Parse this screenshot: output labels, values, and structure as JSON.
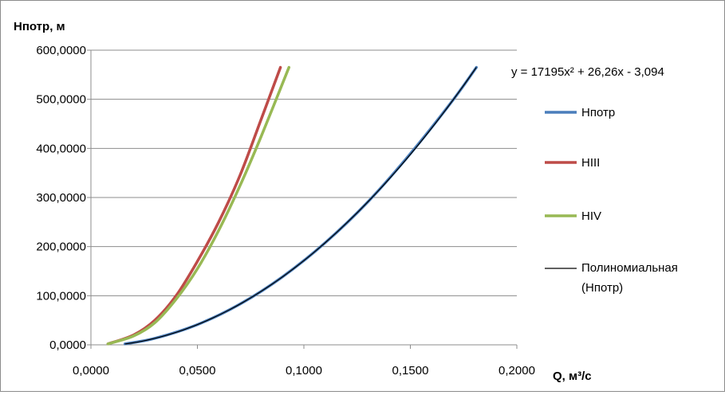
{
  "chart_data": {
    "type": "line",
    "ylabel": "Нпотр, м",
    "xlabel": "Q, м³/с",
    "xlim": [
      0,
      0.2
    ],
    "ylim": [
      0,
      600
    ],
    "x_ticks": [
      "0,0000",
      "0,0500",
      "0,1000",
      "0,1500",
      "0,2000"
    ],
    "y_ticks": [
      "0,0000",
      "100,0000",
      "200,0000",
      "300,0000",
      "400,0000",
      "500,0000",
      "600,0000"
    ],
    "grid": "horizontal",
    "legend_position": "right",
    "trendline_equation": "y = 17195x² + 26,26x - 3,094",
    "series": [
      {
        "name": "Нпотр",
        "color": "#4a7ebb",
        "x": [
          0.016,
          0.03,
          0.05,
          0.07,
          0.09,
          0.11,
          0.13,
          0.15,
          0.17,
          0.181
        ],
        "y": [
          1.9,
          13.2,
          41.2,
          83.0,
          138.6,
          207.9,
          290.9,
          389.2,
          498.3,
          565.0
        ]
      },
      {
        "name": "НIII",
        "color": "#be4b48",
        "x": [
          0.008,
          0.02,
          0.03,
          0.04,
          0.05,
          0.06,
          0.07,
          0.08,
          0.089
        ],
        "y": [
          2.0,
          20.0,
          50.0,
          100.0,
          170.0,
          250.0,
          345.0,
          460.0,
          565.0
        ]
      },
      {
        "name": "НIV",
        "color": "#98b954",
        "x": [
          0.008,
          0.02,
          0.03,
          0.04,
          0.05,
          0.06,
          0.07,
          0.08,
          0.093
        ],
        "y": [
          2.0,
          18.0,
          45.0,
          93.0,
          155.0,
          233.0,
          324.0,
          425.0,
          565.0
        ]
      }
    ],
    "trendline": {
      "name": "Полиномиальная (Нпотр)",
      "color": "#000000",
      "coefficients": [
        17195,
        26.26,
        -3.094
      ],
      "x_range": [
        0.016,
        0.181
      ]
    }
  }
}
